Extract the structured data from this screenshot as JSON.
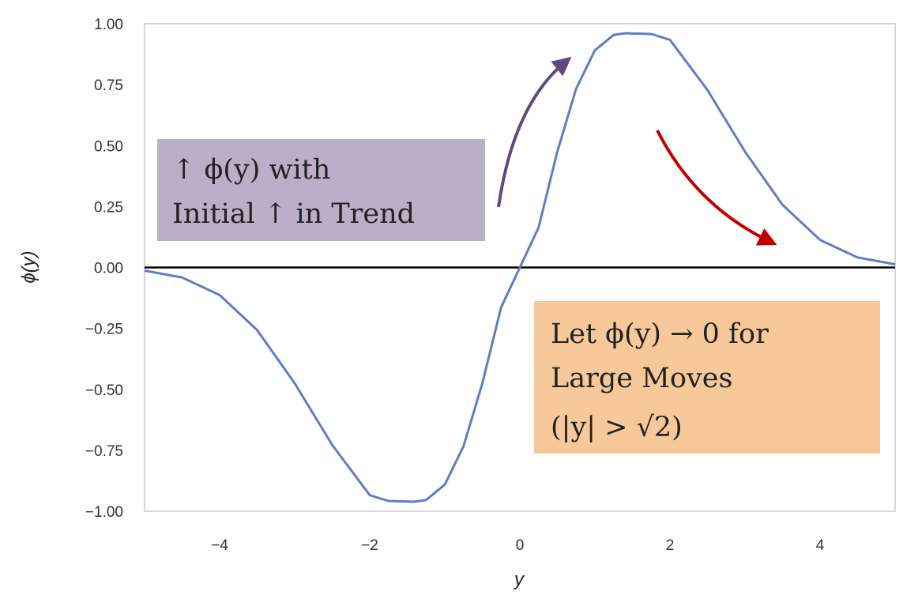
{
  "chart_data": {
    "type": "line",
    "title": "",
    "xlabel": "y",
    "ylabel": "ϕ(y)",
    "xlim": [
      -5,
      5
    ],
    "ylim": [
      -1.0,
      1.0
    ],
    "grid": false,
    "x_ticks": [
      -4,
      -2,
      0,
      2,
      4
    ],
    "x_tick_labels": [
      "−4",
      "−2",
      "0",
      "2",
      "4"
    ],
    "y_ticks": [
      1.0,
      0.75,
      0.5,
      0.25,
      0.0,
      -0.25,
      -0.5,
      -0.75,
      -1.0
    ],
    "y_tick_labels": [
      "1.00",
      "0.75",
      "0.50",
      "0.25",
      "0.00",
      "−0.25",
      "−0.50",
      "−0.75",
      "−1.00"
    ],
    "series": [
      {
        "color": "#5b7fc4",
        "x": [
          -5.0,
          -4.5,
          -4.0,
          -3.5,
          -3.0,
          -2.5,
          -2.0,
          -1.75,
          -1.5,
          -1.414,
          -1.25,
          -1.0,
          -0.75,
          -0.5,
          -0.25,
          0.0,
          0.25,
          0.5,
          0.75,
          1.0,
          1.25,
          1.414,
          1.5,
          1.75,
          2.0,
          2.5,
          3.0,
          3.5,
          4.0,
          4.5,
          5.0
        ],
        "y": [
          -0.013,
          -0.041,
          -0.113,
          -0.257,
          -0.475,
          -0.728,
          -0.934,
          -0.958,
          -0.96,
          -0.961,
          -0.954,
          -0.891,
          -0.733,
          -0.476,
          -0.164,
          0.0,
          0.164,
          0.476,
          0.733,
          0.891,
          0.954,
          0.961,
          0.96,
          0.958,
          0.934,
          0.728,
          0.475,
          0.257,
          0.113,
          0.041,
          0.013
        ]
      }
    ],
    "reference_line": {
      "y": 0.0,
      "color": "#000000"
    },
    "annotations": [
      {
        "lines": [
          "↑ ϕ(y) with",
          "Initial ↑ in Trend"
        ],
        "background": "#bcaec8",
        "arrow_color": "#5e4a80"
      },
      {
        "lines": [
          "Let ϕ(y) → 0 for",
          "Large Moves",
          "(|y| > √2)"
        ],
        "background": "#f7c99a",
        "arrow_color": "#c00000"
      }
    ]
  }
}
